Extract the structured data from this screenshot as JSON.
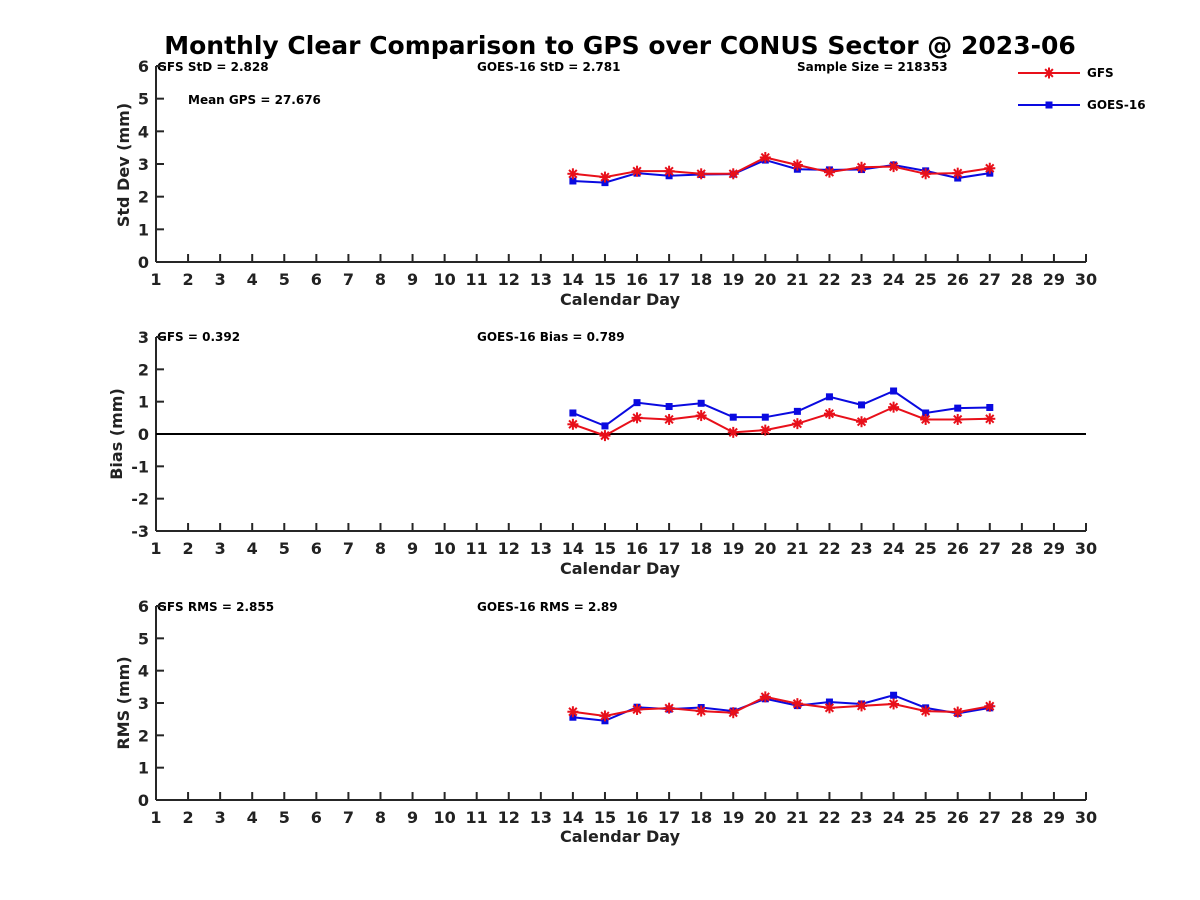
{
  "colors": {
    "gfs": "#e8101a",
    "goes": "#0a0ae0",
    "axis": "#262626"
  },
  "legend": {
    "placement": "top-right",
    "entries": [
      "GFS",
      "GOES-16"
    ]
  },
  "chart_data": [
    {
      "type": "line",
      "title": "Monthly Clear Comparison to GPS over CONUS Sector @ 2023-06",
      "xlabel": "Calendar Day",
      "ylabel": "Std Dev (mm)",
      "xlim": [
        1,
        30
      ],
      "ylim": [
        0,
        6
      ],
      "yticks": [
        0,
        1,
        2,
        3,
        4,
        5,
        6
      ],
      "xticks": [
        1,
        2,
        3,
        4,
        5,
        6,
        7,
        8,
        9,
        10,
        11,
        12,
        13,
        14,
        15,
        16,
        17,
        18,
        19,
        20,
        21,
        22,
        23,
        24,
        25,
        26,
        27,
        28,
        29,
        30
      ],
      "x": [
        14,
        15,
        16,
        17,
        18,
        19,
        20,
        21,
        22,
        23,
        24,
        25,
        26,
        27
      ],
      "series": [
        {
          "name": "GFS",
          "marker": "asterisk",
          "values": [
            2.7,
            2.6,
            2.78,
            2.78,
            2.7,
            2.7,
            3.2,
            2.97,
            2.75,
            2.9,
            2.92,
            2.7,
            2.72,
            2.87
          ]
        },
        {
          "name": "GOES-16",
          "marker": "square",
          "values": [
            2.48,
            2.43,
            2.72,
            2.64,
            2.68,
            2.69,
            3.12,
            2.84,
            2.82,
            2.83,
            2.97,
            2.79,
            2.57,
            2.72
          ]
        }
      ],
      "annotations": [
        "GFS StD = 2.828",
        "GOES-16 StD = 2.781",
        "Sample Size = 218353",
        "Mean GPS = 27.676"
      ]
    },
    {
      "type": "line",
      "xlabel": "Calendar Day",
      "ylabel": "Bias (mm)",
      "xlim": [
        1,
        30
      ],
      "ylim": [
        -3,
        3
      ],
      "yticks": [
        -3,
        -2,
        -1,
        0,
        1,
        2,
        3
      ],
      "xticks": [
        1,
        2,
        3,
        4,
        5,
        6,
        7,
        8,
        9,
        10,
        11,
        12,
        13,
        14,
        15,
        16,
        17,
        18,
        19,
        20,
        21,
        22,
        23,
        24,
        25,
        26,
        27,
        28,
        29,
        30
      ],
      "reference_line": 0,
      "x": [
        14,
        15,
        16,
        17,
        18,
        19,
        20,
        21,
        22,
        23,
        24,
        25,
        26,
        27
      ],
      "series": [
        {
          "name": "GFS",
          "marker": "asterisk",
          "values": [
            0.3,
            -0.05,
            0.5,
            0.45,
            0.57,
            0.05,
            0.12,
            0.32,
            0.63,
            0.38,
            0.83,
            0.45,
            0.45,
            0.47
          ]
        },
        {
          "name": "GOES-16",
          "marker": "square",
          "values": [
            0.65,
            0.25,
            0.97,
            0.85,
            0.95,
            0.52,
            0.52,
            0.7,
            1.15,
            0.9,
            1.33,
            0.65,
            0.8,
            0.82
          ]
        }
      ],
      "annotations": [
        "GFS = 0.392",
        "GOES-16 Bias = 0.789"
      ]
    },
    {
      "type": "line",
      "xlabel": "Calendar Day",
      "ylabel": "RMS (mm)",
      "xlim": [
        1,
        30
      ],
      "ylim": [
        0,
        6
      ],
      "yticks": [
        0,
        1,
        2,
        3,
        4,
        5,
        6
      ],
      "xticks": [
        1,
        2,
        3,
        4,
        5,
        6,
        7,
        8,
        9,
        10,
        11,
        12,
        13,
        14,
        15,
        16,
        17,
        18,
        19,
        20,
        21,
        22,
        23,
        24,
        25,
        26,
        27,
        28,
        29,
        30
      ],
      "x": [
        14,
        15,
        16,
        17,
        18,
        19,
        20,
        21,
        22,
        23,
        24,
        25,
        26,
        27
      ],
      "series": [
        {
          "name": "GFS",
          "marker": "asterisk",
          "values": [
            2.73,
            2.6,
            2.8,
            2.84,
            2.75,
            2.7,
            3.19,
            2.98,
            2.85,
            2.91,
            2.97,
            2.75,
            2.72,
            2.9
          ]
        },
        {
          "name": "GOES-16",
          "marker": "square",
          "values": [
            2.56,
            2.45,
            2.87,
            2.81,
            2.86,
            2.75,
            3.13,
            2.92,
            3.03,
            2.97,
            3.24,
            2.85,
            2.68,
            2.85
          ]
        }
      ],
      "annotations": [
        "GFS RMS = 2.855",
        "GOES-16 RMS = 2.89"
      ]
    }
  ]
}
